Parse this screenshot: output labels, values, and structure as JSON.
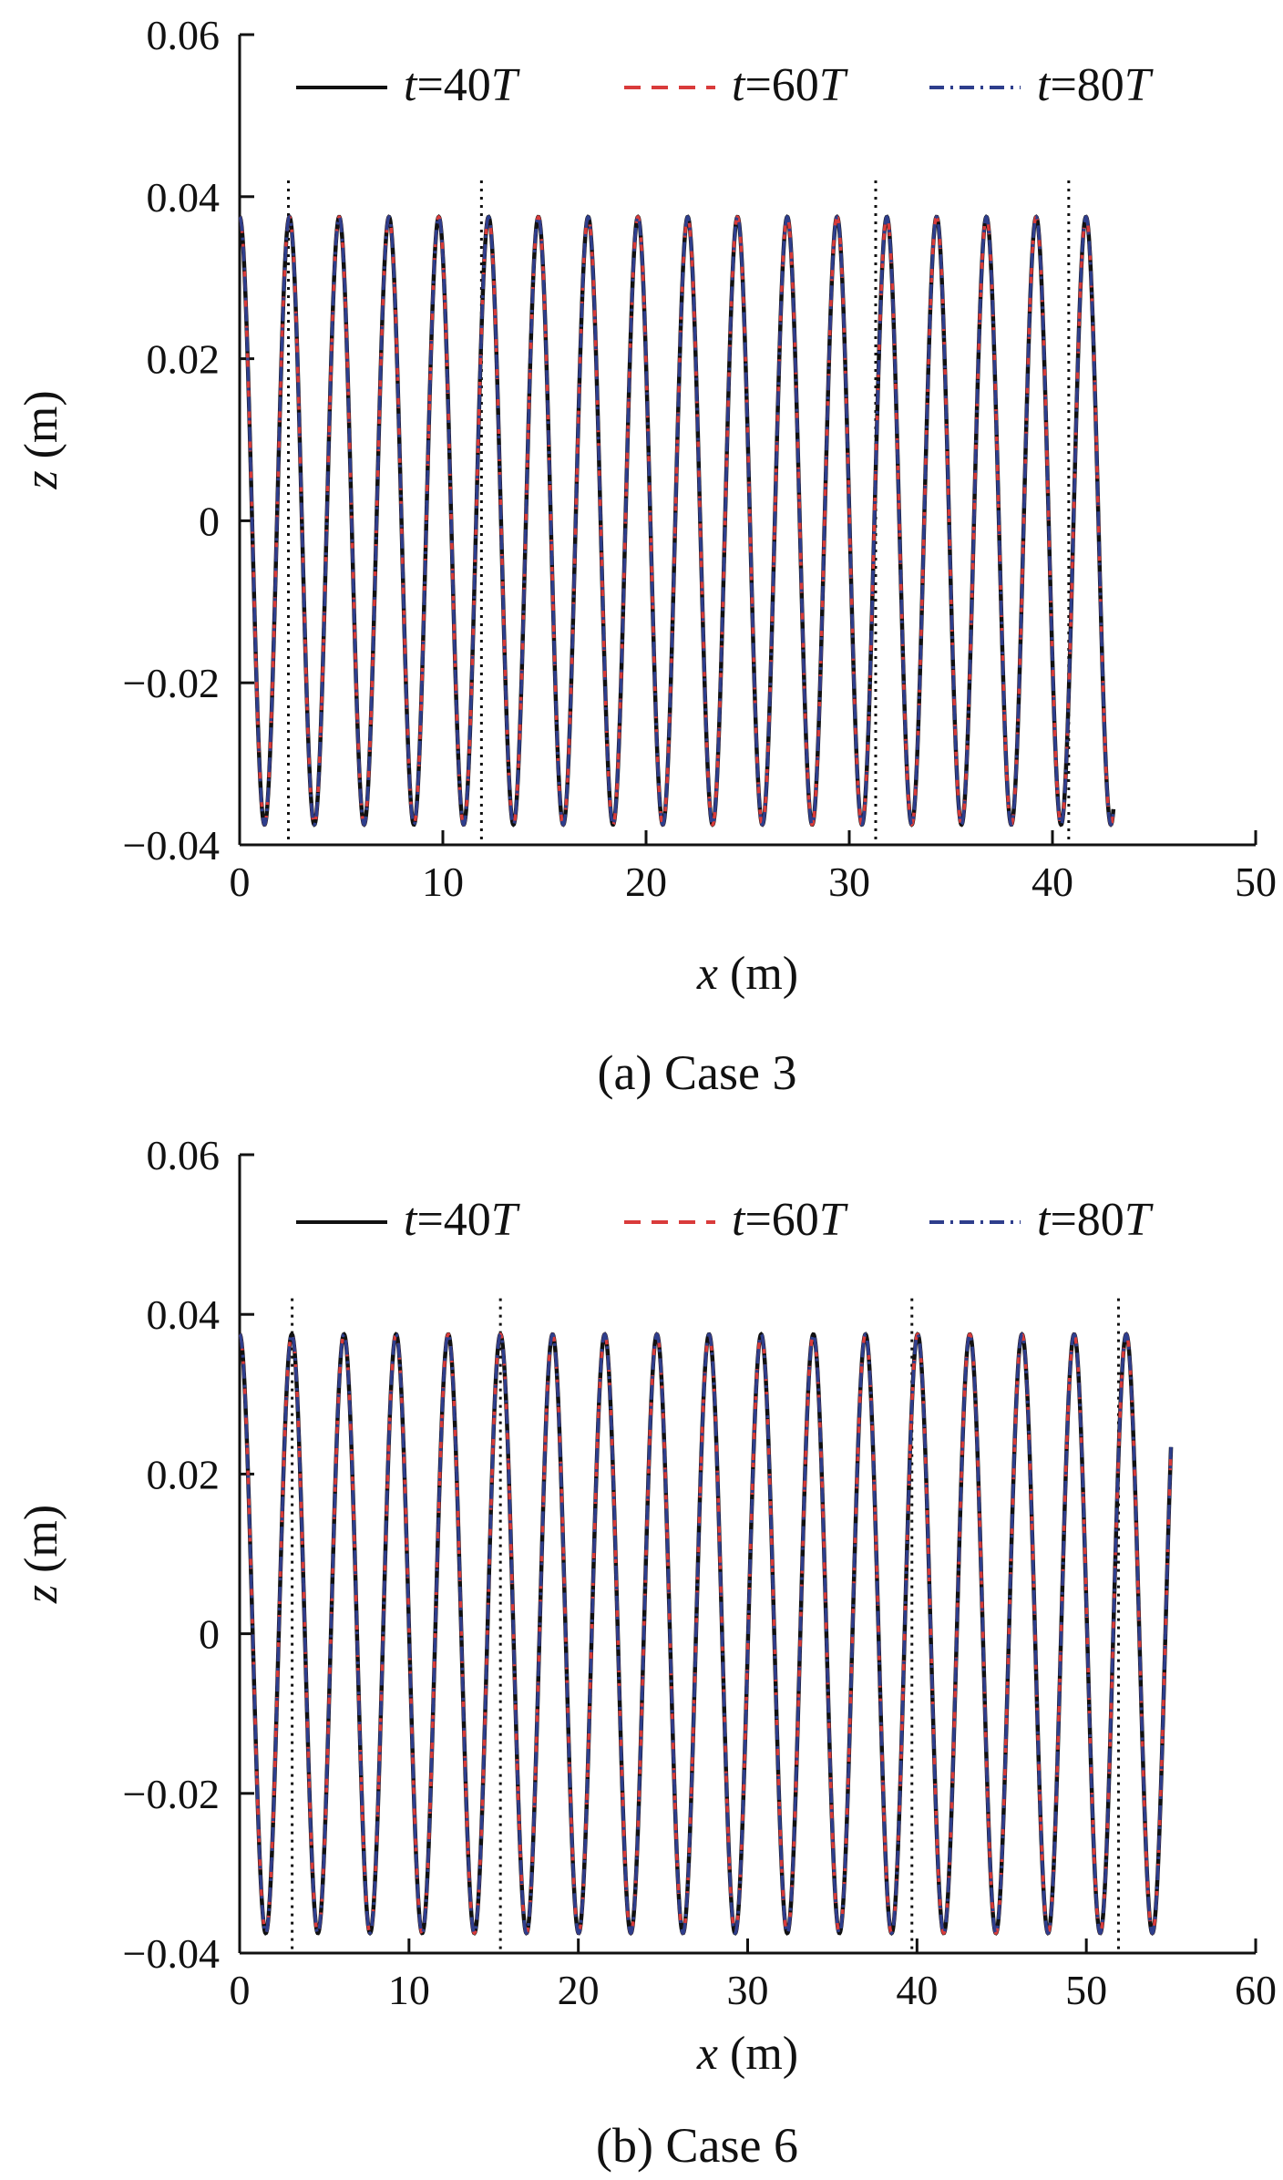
{
  "chart_data": [
    {
      "type": "line",
      "caption": "(a) Case 3",
      "xlabel_var": "x",
      "xlabel_unit": " (m)",
      "ylabel_var": "z",
      "ylabel_unit": " (m)",
      "xlim": [
        0,
        50
      ],
      "ylim": [
        -0.04,
        0.06
      ],
      "xticks": [
        "0",
        "10",
        "20",
        "30",
        "40",
        "50"
      ],
      "yticks": [
        "0.06",
        "0.04",
        "0.02",
        "0",
        "−0.02",
        "−0.04"
      ],
      "grid": false,
      "legend_position": "top",
      "wave": {
        "x_start": 0,
        "x_end": 43.0,
        "wavelength": 2.45,
        "amplitude": 0.0375,
        "phase_offset": 0.0
      },
      "series": [
        {
          "time_var": "t",
          "time_value": "=40",
          "time_unit": "T",
          "style": "solid",
          "color": "#111111"
        },
        {
          "time_var": "t",
          "time_value": "=60",
          "time_unit": "T",
          "style": "dashed",
          "color": "#d93b3b"
        },
        {
          "time_var": "t",
          "time_value": "=80",
          "time_unit": "T",
          "style": "dashdot",
          "color": "#2e3e8c"
        }
      ],
      "vlines": [
        2.4,
        11.9,
        31.3,
        40.8
      ],
      "vline_top": 0.042
    },
    {
      "type": "line",
      "caption": "(b) Case 6",
      "xlabel_var": "x",
      "xlabel_unit": " (m)",
      "ylabel_var": "z",
      "ylabel_unit": " (m)",
      "xlim": [
        0,
        60
      ],
      "ylim": [
        -0.04,
        0.06
      ],
      "xticks": [
        "0",
        "10",
        "20",
        "30",
        "40",
        "50",
        "60"
      ],
      "yticks": [
        "0.06",
        "0.04",
        "0.02",
        "0",
        "−0.02",
        "−0.04"
      ],
      "grid": false,
      "legend_position": "top",
      "wave": {
        "x_start": 0,
        "x_end": 55.0,
        "wavelength": 3.08,
        "amplitude": 0.0375,
        "phase_offset": 0.0
      },
      "series": [
        {
          "time_var": "t",
          "time_value": "=40",
          "time_unit": "T",
          "style": "solid",
          "color": "#111111"
        },
        {
          "time_var": "t",
          "time_value": "=60",
          "time_unit": "T",
          "style": "dashed",
          "color": "#d93b3b"
        },
        {
          "time_var": "t",
          "time_value": "=80",
          "time_unit": "T",
          "style": "dashdot",
          "color": "#2e3e8c"
        }
      ],
      "vlines": [
        3.1,
        15.4,
        39.7,
        51.9
      ],
      "vline_top": 0.042
    }
  ]
}
